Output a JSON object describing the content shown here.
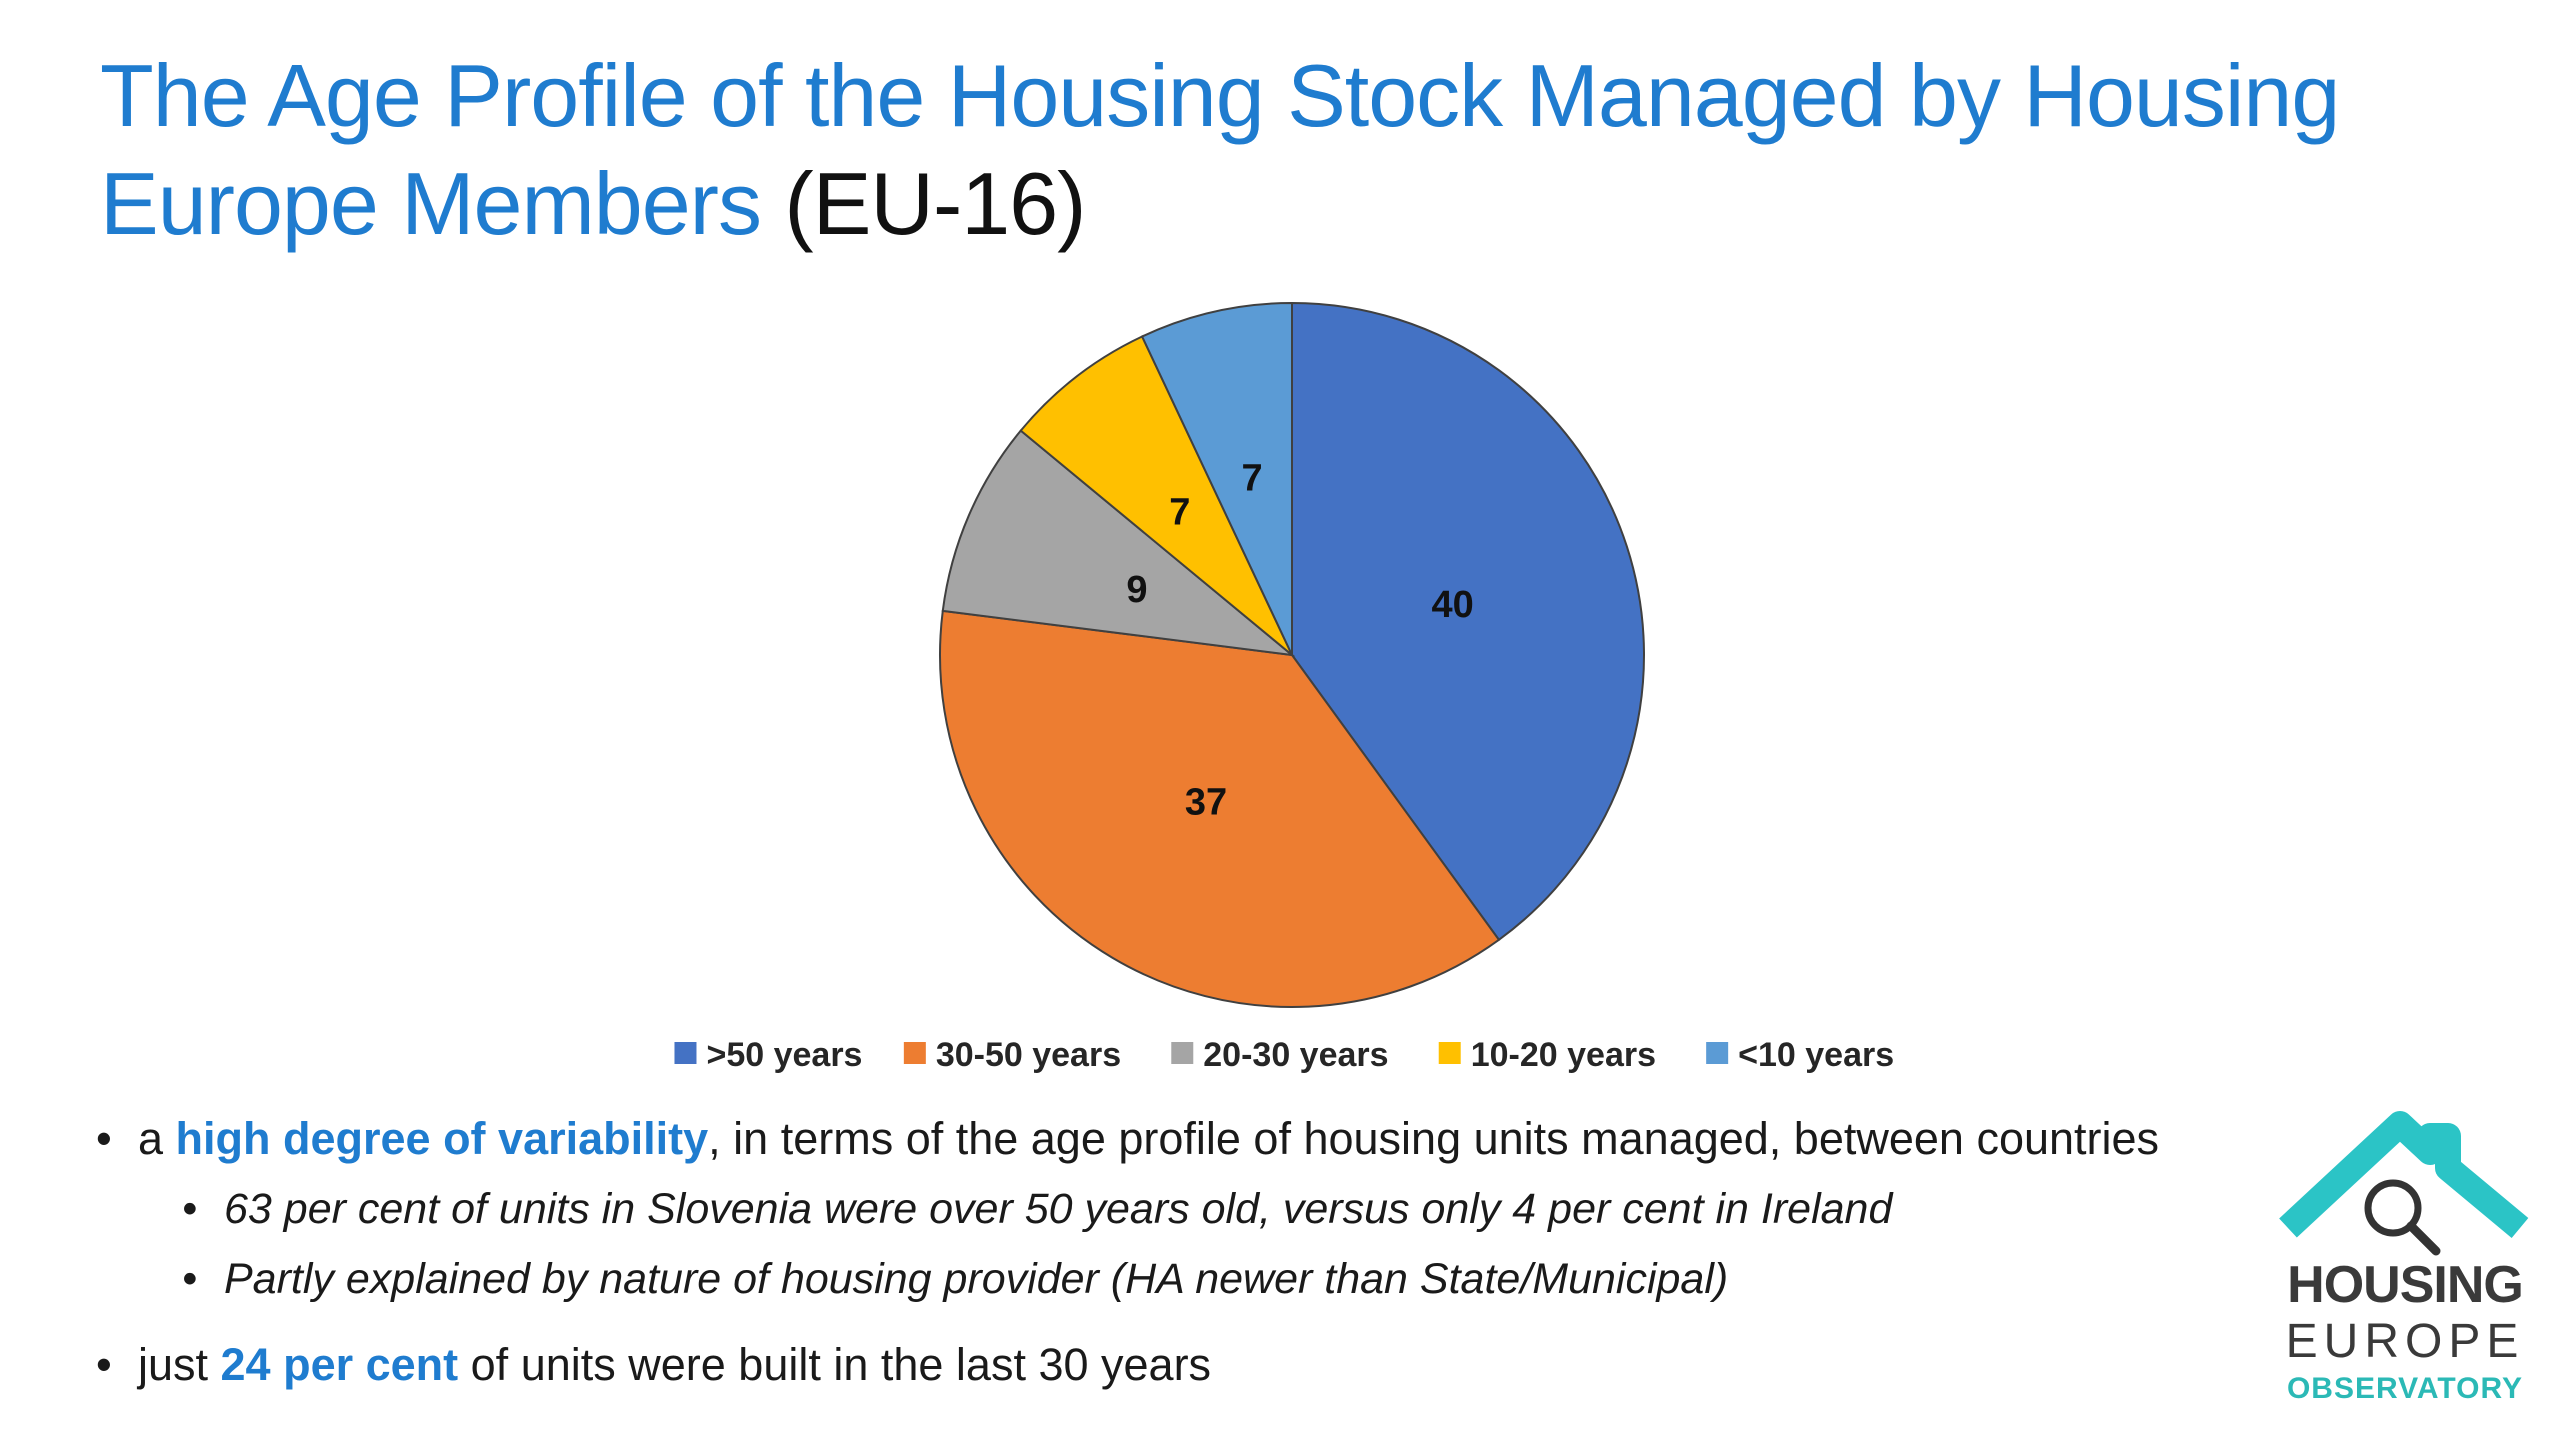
{
  "slide": {
    "title_main": "The Age Profile of the Housing Stock Managed by Housing Europe Members",
    "title_suffix": "(EU-16)"
  },
  "chart_data": {
    "type": "pie",
    "categories": [
      ">50 years",
      "30-50 years",
      "20-30 years",
      "10-20 years",
      "<10 years"
    ],
    "values": [
      40,
      37,
      9,
      7,
      7
    ],
    "data_labels": [
      "40",
      "37",
      "9",
      "7",
      "7"
    ],
    "colors": [
      "#4472c4",
      "#ed7d31",
      "#a5a5a5",
      "#ffc000",
      "#5b9bd5"
    ],
    "legend_position": "bottom",
    "start_angle": "12 o'clock",
    "direction": "clockwise"
  },
  "bullets": {
    "b1_prefix": "a ",
    "b1_highlight": "high degree of variability",
    "b1_suffix": ", in terms of the age profile of housing units managed, between countries",
    "b1_sub1": "63 per cent of units in Slovenia were over 50 years old, versus only 4 per cent in Ireland",
    "b1_sub2": "Partly explained by nature of housing provider (HA newer than State/Municipal)",
    "b2_prefix": "just ",
    "b2_highlight": "24 per cent",
    "b2_suffix": " of units were built in the last 30 years"
  },
  "logo": {
    "line1": "HOUSING",
    "line2": "EUROPE",
    "line3": "OBSERVATORY",
    "house_color": "#2bc4c6",
    "icon": "magnifier-house-icon"
  }
}
